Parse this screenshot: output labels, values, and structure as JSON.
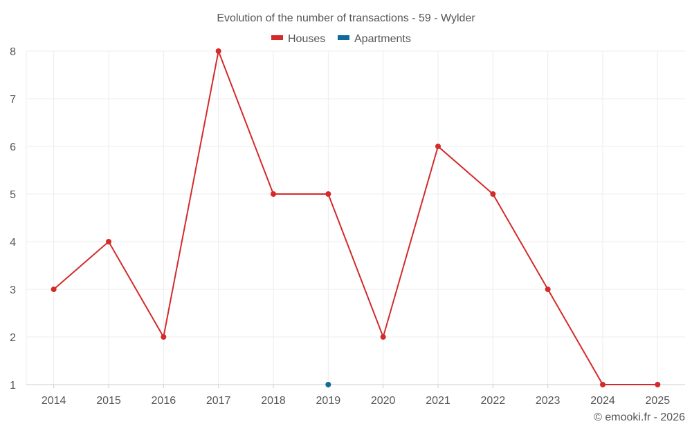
{
  "chart_data": {
    "type": "line",
    "title": "Evolution of the number of transactions - 59 - Wylder",
    "categories": [
      "2014",
      "2015",
      "2016",
      "2017",
      "2018",
      "2019",
      "2020",
      "2021",
      "2022",
      "2023",
      "2024",
      "2025"
    ],
    "ylim": [
      1,
      8
    ],
    "yticks": [
      1,
      2,
      3,
      4,
      5,
      6,
      7,
      8
    ],
    "grid": true,
    "legend_position": "top-center",
    "series": [
      {
        "name": "Houses",
        "color": "#d42a2a",
        "values": [
          3,
          4,
          2,
          8,
          5,
          5,
          2,
          6,
          5,
          3,
          1,
          1
        ]
      },
      {
        "name": "Apartments",
        "color": "#106b9c",
        "values": [
          null,
          null,
          null,
          null,
          null,
          1,
          null,
          null,
          null,
          null,
          null,
          null
        ]
      }
    ]
  },
  "credit": "© emooki.fr - 2026",
  "colors": {
    "grid": "#ececec",
    "text": "#555555",
    "axis": "#cccccc"
  }
}
